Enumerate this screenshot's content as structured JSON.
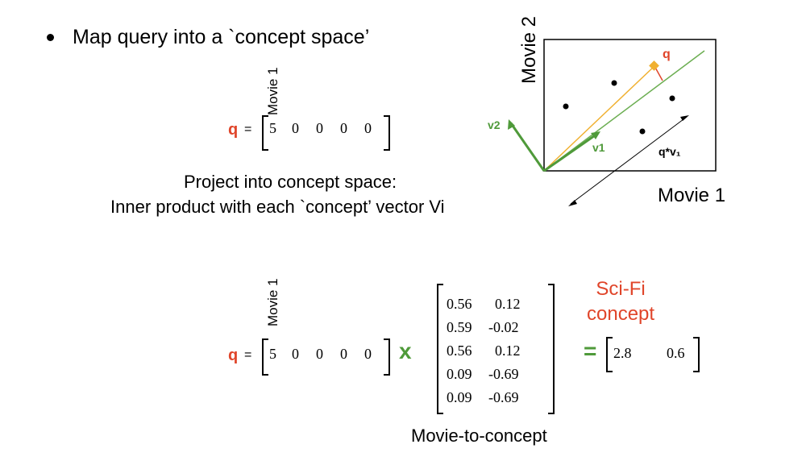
{
  "bullet": "Map query into a `concept space’",
  "query_top": {
    "q_label": "q",
    "equals": "=",
    "axis_label": "Movie 1",
    "values": [
      "5",
      "0",
      "0",
      "0",
      "0"
    ]
  },
  "project_text": {
    "line1": "Project into concept space:",
    "line2": "Inner product with each `concept’ vector Vi"
  },
  "plot": {
    "y_label": "Movie 2",
    "x_label": "Movie 1",
    "q_label": "q",
    "v1_label": "v1",
    "v2_label": "v2",
    "proj_label": "q*v₁"
  },
  "query_bottom": {
    "q_label": "q",
    "equals": "=",
    "axis_label": "Movie 1",
    "values": [
      "5",
      "0",
      "0",
      "0",
      "0"
    ],
    "times": "x"
  },
  "matrix": {
    "rows": [
      [
        "0.56",
        "0.12"
      ],
      [
        "0.59",
        "-0.02"
      ],
      [
        "0.56",
        "0.12"
      ],
      [
        "0.09",
        "-0.69"
      ],
      [
        "0.09",
        "-0.69"
      ]
    ],
    "caption": "Movie-to-concept"
  },
  "concept_label": "Sci-Fi\nconcept",
  "result": {
    "equals": "=",
    "values": [
      "2.8",
      "0.6"
    ]
  },
  "colors": {
    "red": "#e0452a",
    "green": "#4f9a3a",
    "orange": "#f0b030"
  }
}
